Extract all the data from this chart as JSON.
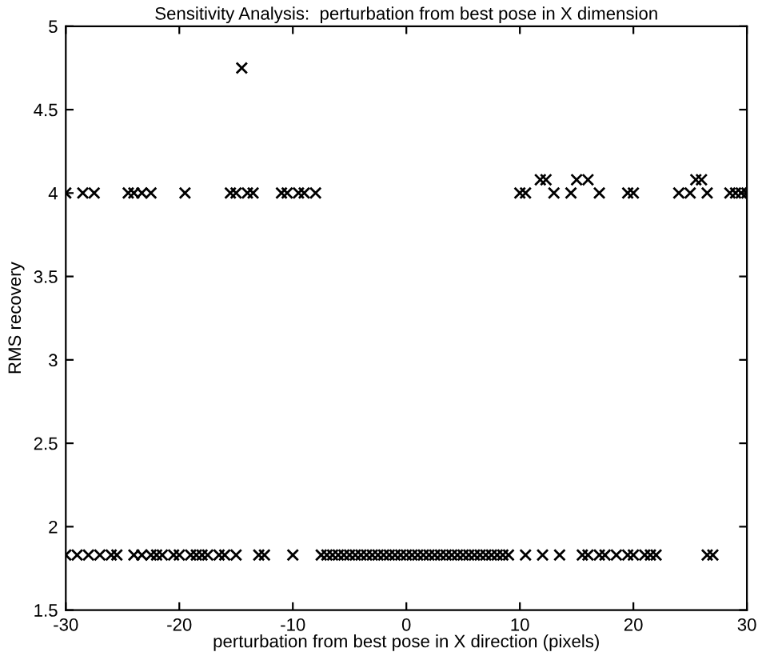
{
  "chart_data": {
    "type": "scatter",
    "title": "Sensitivity Analysis:  perturbation from best pose in X dimension",
    "xlabel": "perturbation from best pose in X direction (pixels)",
    "ylabel": "RMS recovery",
    "marker": "cross",
    "grid": false,
    "xlim": [
      -30,
      30
    ],
    "xticks": [
      -30,
      -20,
      -10,
      0,
      10,
      20,
      30
    ],
    "ylim": [
      1.5,
      5
    ],
    "yticks": [
      1.5,
      2,
      2.5,
      3,
      3.5,
      4,
      4.5,
      5
    ],
    "series": [
      {
        "color": "#000000",
        "x": [
          -14.5,
          -30,
          -28.5,
          -27.5,
          -24.5,
          -24,
          -23.3,
          -22.5,
          -19.5,
          -15.5,
          -15,
          -14,
          -13.5,
          -11,
          -10.5,
          -9.5,
          -9,
          -8,
          10,
          10.5,
          13,
          14.5,
          17,
          19.5,
          20,
          24,
          25,
          26.5,
          28.5,
          29,
          29.5,
          30,
          11.8,
          12.3,
          15,
          16,
          25.5,
          26
        ],
        "values": [
          4.75,
          4,
          4,
          4,
          4,
          4,
          4,
          4,
          4,
          4,
          4,
          4,
          4,
          4,
          4,
          4,
          4,
          4,
          4,
          4,
          4,
          4,
          4,
          4,
          4,
          4,
          4,
          4,
          4,
          4,
          4,
          4,
          4.08,
          4.08,
          4.08,
          4.08,
          4.08,
          4.08
        ]
      },
      {
        "color": "#000000",
        "x": [
          -30,
          -29,
          -28,
          -27,
          -26,
          -25.5,
          -24,
          -23.3,
          -22.5,
          -22,
          -21.5,
          -20.5,
          -20,
          -19,
          -18.5,
          -18,
          -17.5,
          -16.5,
          -16,
          -15,
          -13,
          -12.5,
          -10,
          -7.5,
          -7,
          -6.5,
          -6,
          -5.5,
          -5,
          -4.5,
          -4,
          -3.5,
          -3,
          -2.5,
          -2,
          -1.5,
          -1,
          -0.5,
          0,
          0.5,
          1,
          1.5,
          2,
          2.5,
          3,
          3.5,
          4,
          4.5,
          5,
          5.5,
          6,
          6.5,
          7,
          7.5,
          8,
          8.5,
          9,
          10.5,
          12,
          13.5,
          15.5,
          16,
          17,
          17.5,
          18.5,
          19.5,
          20,
          21,
          21.5,
          22,
          26.5,
          27
        ],
        "values": [
          1.83,
          1.83,
          1.83,
          1.83,
          1.83,
          1.83,
          1.83,
          1.83,
          1.83,
          1.83,
          1.83,
          1.83,
          1.83,
          1.83,
          1.83,
          1.83,
          1.83,
          1.83,
          1.83,
          1.83,
          1.83,
          1.83,
          1.83,
          1.83,
          1.83,
          1.83,
          1.83,
          1.83,
          1.83,
          1.83,
          1.83,
          1.83,
          1.83,
          1.83,
          1.83,
          1.83,
          1.83,
          1.83,
          1.83,
          1.83,
          1.83,
          1.83,
          1.83,
          1.83,
          1.83,
          1.83,
          1.83,
          1.83,
          1.83,
          1.83,
          1.83,
          1.83,
          1.83,
          1.83,
          1.83,
          1.83,
          1.83,
          1.83,
          1.83,
          1.83,
          1.83,
          1.83,
          1.83,
          1.83,
          1.83,
          1.83,
          1.83,
          1.83,
          1.83,
          1.83,
          1.83,
          1.83
        ]
      }
    ]
  }
}
